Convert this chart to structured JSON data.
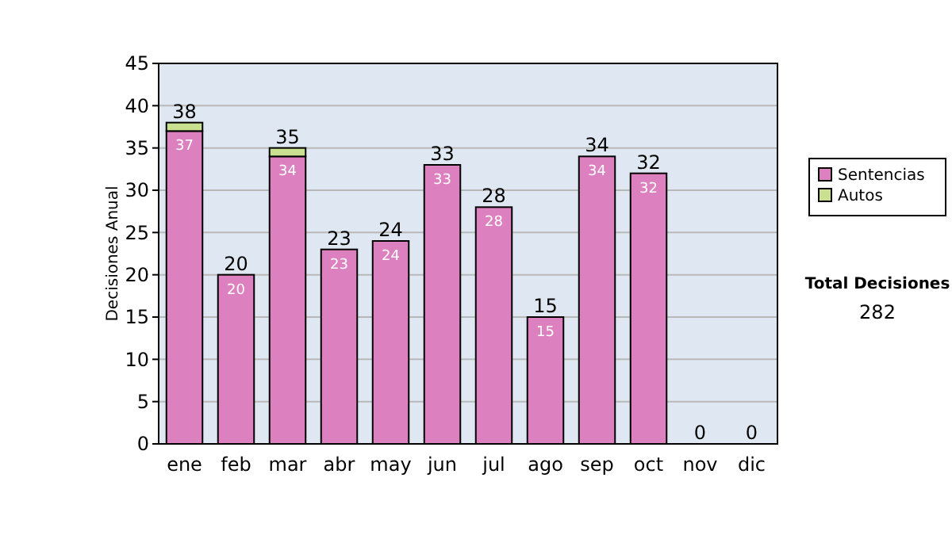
{
  "chart_data": {
    "type": "bar",
    "stacked": true,
    "ylabel": "Decisiones Anual",
    "categories": [
      "ene",
      "feb",
      "mar",
      "abr",
      "may",
      "jun",
      "jul",
      "ago",
      "sep",
      "oct",
      "nov",
      "dic"
    ],
    "series": [
      {
        "name": "Sentencias",
        "color": "#dd80c0",
        "values": [
          37,
          20,
          34,
          23,
          24,
          33,
          28,
          15,
          34,
          32,
          0,
          0
        ],
        "value_labels": [
          "37",
          "20",
          "34",
          "23",
          "24",
          "33",
          "28",
          "15",
          "34",
          "32",
          null,
          null
        ]
      },
      {
        "name": "Autos",
        "color": "#c8e090",
        "values": [
          1,
          0,
          1,
          0,
          0,
          0,
          0,
          0,
          0,
          0,
          0,
          0
        ]
      }
    ],
    "totals": [
      "38",
      "20",
      "35",
      "23",
      "24",
      "33",
      "28",
      "15",
      "34",
      "32",
      "0",
      "0"
    ],
    "ylim": [
      0,
      45
    ],
    "yticks": [
      0,
      5,
      10,
      15,
      20,
      25,
      30,
      35,
      40,
      45
    ],
    "grid": "y",
    "legend": "right",
    "annotations": [
      "Total Decisiones",
      "282"
    ]
  }
}
